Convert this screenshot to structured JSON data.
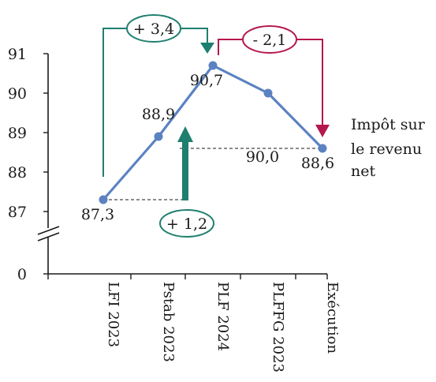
{
  "chart_data": {
    "type": "line",
    "categories": [
      "LFI 2023",
      "Pstab 2023",
      "PLF 2024",
      "PLFFG 2023",
      "Exécution"
    ],
    "series": [
      {
        "name": "Impôt sur le revenu net",
        "values": [
          87.3,
          88.9,
          90.7,
          90.0,
          88.6
        ],
        "value_labels": [
          "87,3",
          "88,9",
          "90,7",
          "90,0",
          "88,6"
        ],
        "color": "#5b82c1"
      }
    ],
    "series_label_lines": [
      "Impôt sur",
      "le revenu",
      "net"
    ],
    "y_ticks": [
      {
        "value": 91,
        "label": "91"
      },
      {
        "value": 90,
        "label": "90"
      },
      {
        "value": 89,
        "label": "89"
      },
      {
        "value": 88,
        "label": "88"
      },
      {
        "value": 87,
        "label": "87"
      },
      {
        "value": 0,
        "label": "0"
      }
    ],
    "ylim": [
      87,
      91
    ],
    "y_axis_break": true,
    "grid": false,
    "annotations": [
      {
        "id": "delta-lfi-plf",
        "text": "+ 3,4",
        "from_category": "LFI 2023",
        "to_category": "PLF 2024",
        "color": "#1f7f6e"
      },
      {
        "id": "delta-plf-exec",
        "text": "- 2,1",
        "from_category": "PLF 2024",
        "to_category": "Exécution",
        "color": "#b5174f"
      },
      {
        "id": "delta-lfi-exec",
        "text": "+ 1,2",
        "from_category": "LFI 2023",
        "to_category": "Exécution",
        "color": "#1f7f6e"
      }
    ]
  }
}
